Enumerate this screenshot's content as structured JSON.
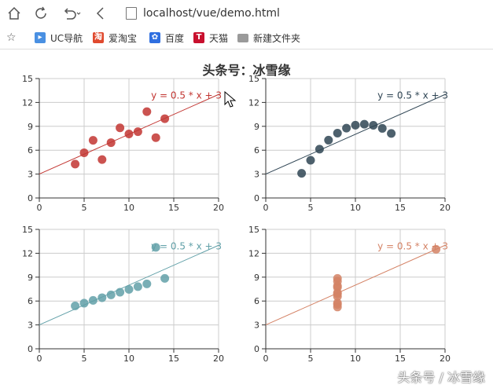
{
  "browser": {
    "url": "localhost/vue/demo.html",
    "bookmarks": [
      {
        "label": "UC导航",
        "color": "#4a90e2",
        "glyph": "▸"
      },
      {
        "label": "爱淘宝",
        "color": "#e04a2f",
        "glyph": "淘"
      },
      {
        "label": "百度",
        "color": "#2f6fe0",
        "glyph": "✿"
      },
      {
        "label": "天猫",
        "color": "#c8102e",
        "glyph": "T"
      },
      {
        "label": "新建文件夹",
        "color": "#9a9a9a",
        "glyph": ""
      }
    ]
  },
  "page": {
    "title": "头条号：冰雪缘",
    "watermark": "头条号 / 冰雪缘"
  },
  "chart_data": [
    {
      "type": "scatter",
      "color": "#c23531",
      "points": [
        [
          10,
          8.04
        ],
        [
          8,
          6.95
        ],
        [
          13,
          7.58
        ],
        [
          9,
          8.81
        ],
        [
          11,
          8.33
        ],
        [
          14,
          9.96
        ],
        [
          6,
          7.24
        ],
        [
          4,
          4.26
        ],
        [
          12,
          10.84
        ],
        [
          7,
          4.82
        ],
        [
          5,
          5.68
        ]
      ],
      "fit_label": "y = 0.5 * x + 3",
      "fit": {
        "slope": 0.5,
        "intercept": 3
      },
      "xlim": [
        0,
        20
      ],
      "ylim": [
        0,
        15
      ],
      "xticks": [
        0,
        5,
        10,
        15,
        20
      ],
      "yticks": [
        0,
        3,
        6,
        9,
        12,
        15
      ]
    },
    {
      "type": "scatter",
      "color": "#2f4554",
      "points": [
        [
          10,
          9.14
        ],
        [
          8,
          8.14
        ],
        [
          13,
          8.74
        ],
        [
          9,
          8.77
        ],
        [
          11,
          9.26
        ],
        [
          14,
          8.1
        ],
        [
          6,
          6.13
        ],
        [
          4,
          3.1
        ],
        [
          12,
          9.13
        ],
        [
          7,
          7.26
        ],
        [
          5,
          4.74
        ]
      ],
      "fit_label": "y = 0.5 * x + 3",
      "fit": {
        "slope": 0.5,
        "intercept": 3
      },
      "xlim": [
        0,
        20
      ],
      "ylim": [
        0,
        15
      ],
      "xticks": [
        0,
        5,
        10,
        15,
        20
      ],
      "yticks": [
        0,
        3,
        6,
        9,
        12,
        15
      ]
    },
    {
      "type": "scatter",
      "color": "#61a0a8",
      "points": [
        [
          10,
          7.46
        ],
        [
          8,
          6.77
        ],
        [
          13,
          12.74
        ],
        [
          9,
          7.11
        ],
        [
          11,
          7.81
        ],
        [
          14,
          8.84
        ],
        [
          6,
          6.08
        ],
        [
          4,
          5.39
        ],
        [
          12,
          8.15
        ],
        [
          7,
          6.42
        ],
        [
          5,
          5.73
        ]
      ],
      "fit_label": "y = 0.5 * x + 3",
      "fit": {
        "slope": 0.5,
        "intercept": 3
      },
      "xlim": [
        0,
        20
      ],
      "ylim": [
        0,
        15
      ],
      "xticks": [
        0,
        5,
        10,
        15,
        20
      ],
      "yticks": [
        0,
        3,
        6,
        9,
        12,
        15
      ]
    },
    {
      "type": "scatter",
      "color": "#d48265",
      "points": [
        [
          8,
          6.58
        ],
        [
          8,
          5.76
        ],
        [
          8,
          7.71
        ],
        [
          8,
          8.84
        ],
        [
          8,
          8.47
        ],
        [
          8,
          7.04
        ],
        [
          8,
          5.25
        ],
        [
          19,
          12.5
        ],
        [
          8,
          5.56
        ],
        [
          8,
          7.91
        ],
        [
          8,
          6.89
        ]
      ],
      "fit_label": "y = 0.5 * x + 3",
      "fit": {
        "slope": 0.5,
        "intercept": 3
      },
      "xlim": [
        0,
        20
      ],
      "ylim": [
        0,
        15
      ],
      "xticks": [
        0,
        5,
        10,
        15,
        20
      ],
      "yticks": [
        0,
        3,
        6,
        9,
        12,
        15
      ]
    }
  ]
}
